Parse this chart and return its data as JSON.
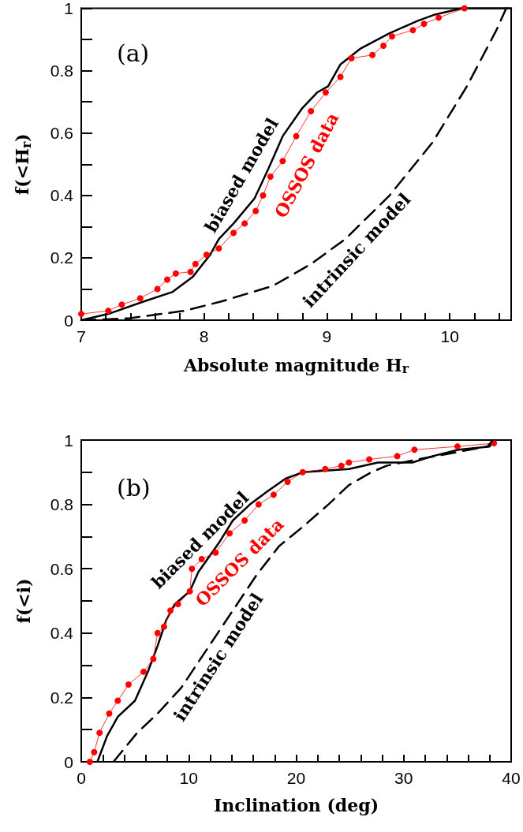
{
  "chart_data": [
    {
      "type": "line",
      "title": "(a)",
      "xlabel": "Absolute magnitude H$_{r}$",
      "ylabel": "f(<H$_{r}$)",
      "xlim": [
        7,
        10.5
      ],
      "ylim": [
        0,
        1
      ],
      "xticks": [
        7,
        {
          "value": 7.2,
          "label": null
        },
        {
          "value": 7.4,
          "label": null
        },
        {
          "value": 7.6,
          "label": null
        },
        {
          "value": 7.8,
          "label": null
        },
        8,
        {
          "value": 8.2,
          "label": null
        },
        {
          "value": 8.4,
          "label": null
        },
        {
          "value": 8.6,
          "label": null
        },
        {
          "value": 8.8,
          "label": null
        },
        9,
        {
          "value": 9.2,
          "label": null
        },
        {
          "value": 9.4,
          "label": null
        },
        {
          "value": 9.6,
          "label": null
        },
        {
          "value": 9.8,
          "label": null
        },
        10,
        {
          "value": 10.2,
          "label": null
        },
        {
          "value": 10.4,
          "label": null
        }
      ],
      "yticks": [
        0,
        {
          "value": 0.1,
          "label": null
        },
        0.2,
        {
          "value": 0.3,
          "label": null
        },
        0.4,
        {
          "value": 0.5,
          "label": null
        },
        0.6,
        {
          "value": 0.7,
          "label": null
        },
        0.8,
        {
          "value": 0.9,
          "label": null
        },
        1
      ],
      "grid": false,
      "legend": false,
      "series": [
        {
          "name": "biased model",
          "color": "#000000",
          "marker": "none",
          "line_style": "solid",
          "x": [
            7,
            7.22,
            7.51,
            7.74,
            7.91,
            8.05,
            8.12,
            8.24,
            8.41,
            8.47,
            8.54,
            8.64,
            8.8,
            8.92,
            9.01,
            9.11,
            9.27,
            9.51,
            9.74,
            9.88,
            10.1,
            10.5
          ],
          "values": [
            0,
            0.02,
            0.06,
            0.09,
            0.14,
            0.21,
            0.26,
            0.31,
            0.39,
            0.44,
            0.5,
            0.59,
            0.68,
            0.73,
            0.75,
            0.82,
            0.87,
            0.92,
            0.96,
            0.98,
            1,
            1
          ]
        },
        {
          "name": "OSSOS data",
          "color": "#ff0000",
          "marker": "circle",
          "line_style": "solid",
          "x": [
            7,
            7.22,
            7.33,
            7.48,
            7.62,
            7.7,
            7.77,
            7.89,
            7.93,
            8.02,
            8.12,
            8.24,
            8.33,
            8.42,
            8.48,
            8.54,
            8.64,
            8.75,
            8.87,
            8.99,
            9.11,
            9.2,
            9.37,
            9.46,
            9.53,
            9.7,
            9.79,
            9.91,
            10.12
          ],
          "values": [
            0.02,
            0.03,
            0.05,
            0.07,
            0.1,
            0.13,
            0.15,
            0.155,
            0.18,
            0.21,
            0.23,
            0.28,
            0.31,
            0.35,
            0.4,
            0.46,
            0.51,
            0.59,
            0.67,
            0.73,
            0.78,
            0.84,
            0.85,
            0.88,
            0.91,
            0.93,
            0.95,
            0.97,
            1
          ]
        },
        {
          "name": "intrinsic model",
          "color": "#000000",
          "marker": "none",
          "line_style": "dashed",
          "x": [
            7,
            7.39,
            7.84,
            8.14,
            8.56,
            8.87,
            9.15,
            9.51,
            9.86,
            10.14,
            10.38,
            10.46
          ],
          "values": [
            0,
            0.006,
            0.03,
            0.06,
            0.11,
            0.18,
            0.26,
            0.4,
            0.57,
            0.75,
            0.93,
            1
          ]
        }
      ]
    },
    {
      "type": "line",
      "title": "(b)",
      "xlabel": "Inclination (deg)",
      "ylabel": "f(<i)",
      "xlim": [
        0,
        40
      ],
      "ylim": [
        0,
        1
      ],
      "xticks": [
        0,
        {
          "value": 2,
          "label": null
        },
        {
          "value": 4,
          "label": null
        },
        {
          "value": 6,
          "label": null
        },
        {
          "value": 8,
          "label": null
        },
        10,
        {
          "value": 12,
          "label": null
        },
        {
          "value": 14,
          "label": null
        },
        {
          "value": 16,
          "label": null
        },
        {
          "value": 18,
          "label": null
        },
        20,
        {
          "value": 22,
          "label": null
        },
        {
          "value": 24,
          "label": null
        },
        {
          "value": 26,
          "label": null
        },
        {
          "value": 28,
          "label": null
        },
        30,
        {
          "value": 32,
          "label": null
        },
        {
          "value": 34,
          "label": null
        },
        {
          "value": 36,
          "label": null
        },
        {
          "value": 38,
          "label": null
        },
        40
      ],
      "yticks": [
        0,
        {
          "value": 0.1,
          "label": null
        },
        0.2,
        {
          "value": 0.3,
          "label": null
        },
        0.4,
        {
          "value": 0.5,
          "label": null
        },
        0.6,
        {
          "value": 0.7,
          "label": null
        },
        0.8,
        {
          "value": 0.9,
          "label": null
        },
        1
      ],
      "grid": false,
      "legend": false,
      "series": [
        {
          "name": "biased model",
          "color": "#000000",
          "marker": "none",
          "line_style": "solid",
          "x": [
            1.5,
            2.4,
            3.4,
            5,
            6.2,
            7.1,
            7.9,
            8.7,
            10.1,
            10.9,
            12.8,
            14.1,
            15.7,
            17.3,
            19,
            20.6,
            24.9,
            27.6,
            30.8,
            32.7,
            35.1,
            38,
            38.3
          ],
          "values": [
            0,
            0.08,
            0.14,
            0.19,
            0.28,
            0.36,
            0.44,
            0.49,
            0.53,
            0.59,
            0.68,
            0.75,
            0.8,
            0.84,
            0.88,
            0.9,
            0.91,
            0.93,
            0.93,
            0.95,
            0.97,
            0.98,
            1
          ]
        },
        {
          "name": "OSSOS data",
          "color": "#ff0000",
          "marker": "circle",
          "line_style": "solid",
          "x": [
            0.8,
            1.2,
            1.7,
            2.6,
            3.4,
            4.4,
            5.8,
            6.7,
            7.1,
            7.7,
            8.3,
            9,
            10.1,
            10.3,
            11.2,
            12.5,
            13.8,
            15.2,
            16.5,
            17.9,
            19.2,
            20.6,
            22.7,
            24.2,
            24.9,
            26.8,
            29.4,
            31,
            35,
            38.4
          ],
          "values": [
            0,
            0.03,
            0.09,
            0.15,
            0.19,
            0.24,
            0.28,
            0.32,
            0.4,
            0.42,
            0.47,
            0.49,
            0.53,
            0.6,
            0.63,
            0.65,
            0.71,
            0.75,
            0.8,
            0.83,
            0.87,
            0.9,
            0.91,
            0.92,
            0.93,
            0.94,
            0.95,
            0.97,
            0.98,
            0.99
          ]
        },
        {
          "name": "intrinsic model",
          "color": "#000000",
          "marker": "none",
          "line_style": "dashed",
          "x": [
            3,
            5.2,
            7.1,
            9.3,
            11.7,
            14.1,
            16.3,
            18.4,
            20.6,
            23,
            24.9,
            27,
            28.4,
            31.3,
            37.8,
            38.3
          ],
          "values": [
            0,
            0.09,
            0.15,
            0.23,
            0.35,
            0.47,
            0.58,
            0.67,
            0.73,
            0.8,
            0.86,
            0.9,
            0.92,
            0.94,
            0.98,
            1
          ]
        }
      ]
    }
  ]
}
